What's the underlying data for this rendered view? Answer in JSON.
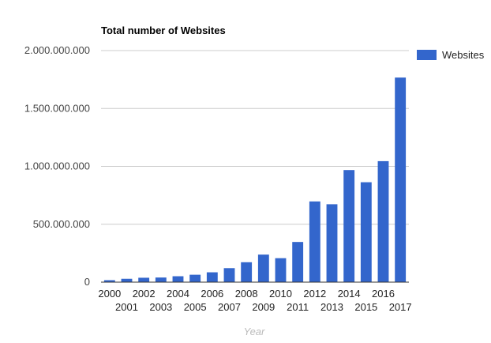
{
  "chart_data": {
    "type": "bar",
    "title": "Total number of Websites",
    "xlabel": "Year",
    "ylabel": "",
    "categories": [
      "2000",
      "2001",
      "2002",
      "2003",
      "2004",
      "2005",
      "2006",
      "2007",
      "2008",
      "2009",
      "2010",
      "2011",
      "2012",
      "2013",
      "2014",
      "2015",
      "2016",
      "2017"
    ],
    "series": [
      {
        "name": "Websites",
        "color": "#3366cc",
        "values": [
          17000000,
          29000000,
          38000000,
          40000000,
          51000000,
          64000000,
          85000000,
          121000000,
          172000000,
          238000000,
          207000000,
          347000000,
          697000000,
          673000000,
          968000000,
          863000000,
          1045000000,
          1767000000
        ]
      }
    ],
    "ylim": [
      0,
      2000000000
    ],
    "yticks": [
      0,
      500000000,
      1000000000,
      1500000000,
      2000000000
    ],
    "ytick_labels": [
      "0",
      "500.000.000",
      "1.000.000.000",
      "1.500.000.000",
      "2.000.000.000"
    ],
    "grid": true,
    "legend_position": "right-top"
  }
}
